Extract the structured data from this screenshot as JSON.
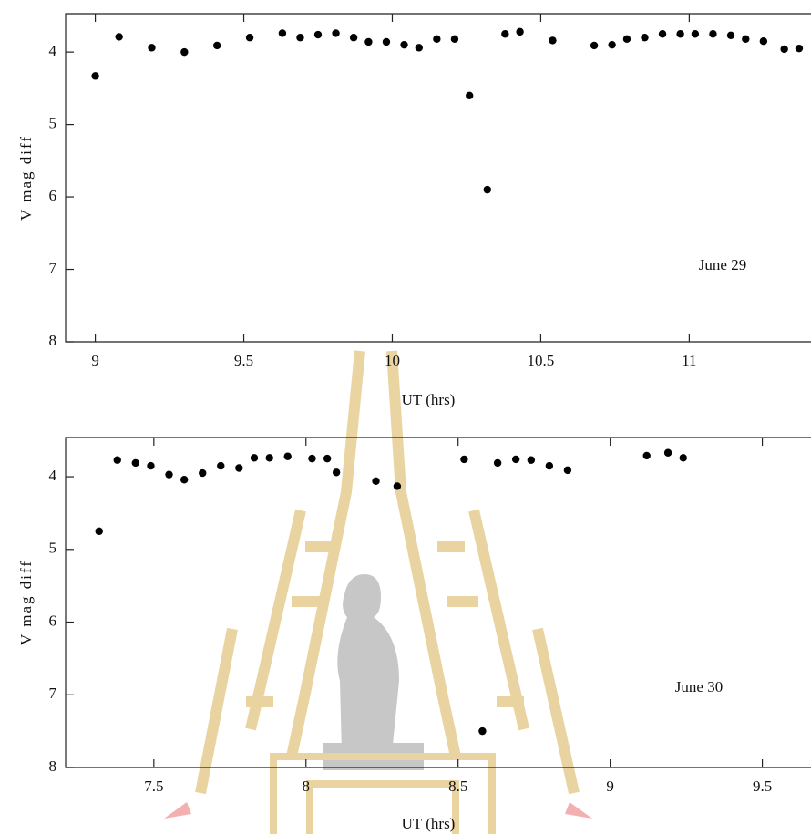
{
  "chart_data": [
    {
      "type": "scatter",
      "annotation": "June 29",
      "xlabel": "UT (hrs)",
      "ylabel": "V mag diff",
      "color": "#000000",
      "xlim": [
        8.9,
        11.41
      ],
      "xticks": [
        9,
        9.5,
        10,
        10.5,
        11
      ],
      "ylim": [
        8,
        3.47
      ],
      "yticks": [
        4,
        5,
        6,
        7,
        8
      ],
      "x": [
        9.0,
        9.08,
        9.19,
        9.3,
        9.41,
        9.52,
        9.63,
        9.69,
        9.75,
        9.81,
        9.87,
        9.92,
        9.98,
        10.04,
        10.09,
        10.15,
        10.21,
        10.26,
        10.32,
        10.38,
        10.43,
        10.54,
        10.68,
        10.74,
        10.79,
        10.85,
        10.91,
        10.97,
        11.02,
        11.08,
        11.14,
        11.19,
        11.25,
        11.32,
        11.37
      ],
      "values": [
        4.33,
        3.79,
        3.94,
        4.0,
        3.91,
        3.8,
        3.74,
        3.8,
        3.76,
        3.74,
        3.8,
        3.86,
        3.86,
        3.9,
        3.94,
        3.82,
        3.82,
        4.6,
        5.9,
        3.75,
        3.72,
        3.84,
        3.91,
        3.9,
        3.82,
        3.8,
        3.75,
        3.75,
        3.75,
        3.75,
        3.77,
        3.82,
        3.85,
        3.96,
        3.95
      ]
    },
    {
      "type": "scatter",
      "annotation": "June 30",
      "xlabel": "UT (hrs)",
      "ylabel": "V mag diff",
      "color": "#000000",
      "xlim": [
        7.21,
        9.66
      ],
      "xticks": [
        7.5,
        8,
        8.5,
        9,
        9.5
      ],
      "ylim": [
        8,
        3.46
      ],
      "yticks": [
        4,
        5,
        6,
        7,
        8
      ],
      "x": [
        7.32,
        7.38,
        7.44,
        7.49,
        7.55,
        7.6,
        7.66,
        7.72,
        7.78,
        7.83,
        7.88,
        7.94,
        8.02,
        8.07,
        8.1,
        8.23,
        8.3,
        8.52,
        8.58,
        8.63,
        8.69,
        8.74,
        8.8,
        8.86,
        9.12,
        9.19,
        9.24
      ],
      "values": [
        4.75,
        3.77,
        3.81,
        3.85,
        3.97,
        4.04,
        3.95,
        3.85,
        3.88,
        3.74,
        3.74,
        3.72,
        3.75,
        3.75,
        3.94,
        4.06,
        4.13,
        3.76,
        7.5,
        3.81,
        3.76,
        3.77,
        3.85,
        3.91,
        3.71,
        3.67,
        3.74
      ]
    }
  ]
}
